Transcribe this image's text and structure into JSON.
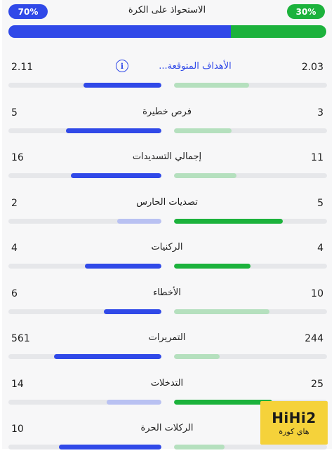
{
  "possession": {
    "title": "الاستحواذ على الكرة",
    "left_label": "70%",
    "right_label": "30%",
    "left_pct": 70,
    "right_pct": 30
  },
  "colors": {
    "blue": "#3049e8",
    "blue_light": "#b9c1f2",
    "green": "#1cb23c",
    "green_light": "#b5e0be",
    "track": "#e6e7ea"
  },
  "stats": [
    {
      "label": "الأهداف المتوقعة...",
      "left": "2.11",
      "right": "2.03",
      "left_frac": 0.51,
      "right_frac": 0.49,
      "left_strong": true,
      "right_strong": false,
      "info": true
    },
    {
      "label": "فرص خطيرة",
      "left": "5",
      "right": "3",
      "left_frac": 0.625,
      "right_frac": 0.375,
      "left_strong": true,
      "right_strong": false
    },
    {
      "label": "إجمالي التسديدات",
      "left": "16",
      "right": "11",
      "left_frac": 0.59,
      "right_frac": 0.41,
      "left_strong": true,
      "right_strong": false
    },
    {
      "label": "تصديات الحارس",
      "left": "2",
      "right": "5",
      "left_frac": 0.29,
      "right_frac": 0.71,
      "left_strong": false,
      "right_strong": true
    },
    {
      "label": "الركنيات",
      "left": "4",
      "right": "4",
      "left_frac": 0.5,
      "right_frac": 0.5,
      "left_strong": true,
      "right_strong": true
    },
    {
      "label": "الأخطاء",
      "left": "6",
      "right": "10",
      "left_frac": 0.375,
      "right_frac": 0.625,
      "left_strong": true,
      "right_strong": false
    },
    {
      "label": "التمريرات",
      "left": "561",
      "right": "244",
      "left_frac": 0.7,
      "right_frac": 0.3,
      "left_strong": true,
      "right_strong": false
    },
    {
      "label": "التدخلات",
      "left": "14",
      "right": "25",
      "left_frac": 0.36,
      "right_frac": 0.64,
      "left_strong": false,
      "right_strong": true
    },
    {
      "label": "الركلات الحرة",
      "left": "10",
      "right": "",
      "left_frac": 0.67,
      "right_frac": 0.33,
      "left_strong": true,
      "right_strong": false
    }
  ],
  "watermark": {
    "logo": "HiHi2",
    "sub": "هاي كورة"
  }
}
